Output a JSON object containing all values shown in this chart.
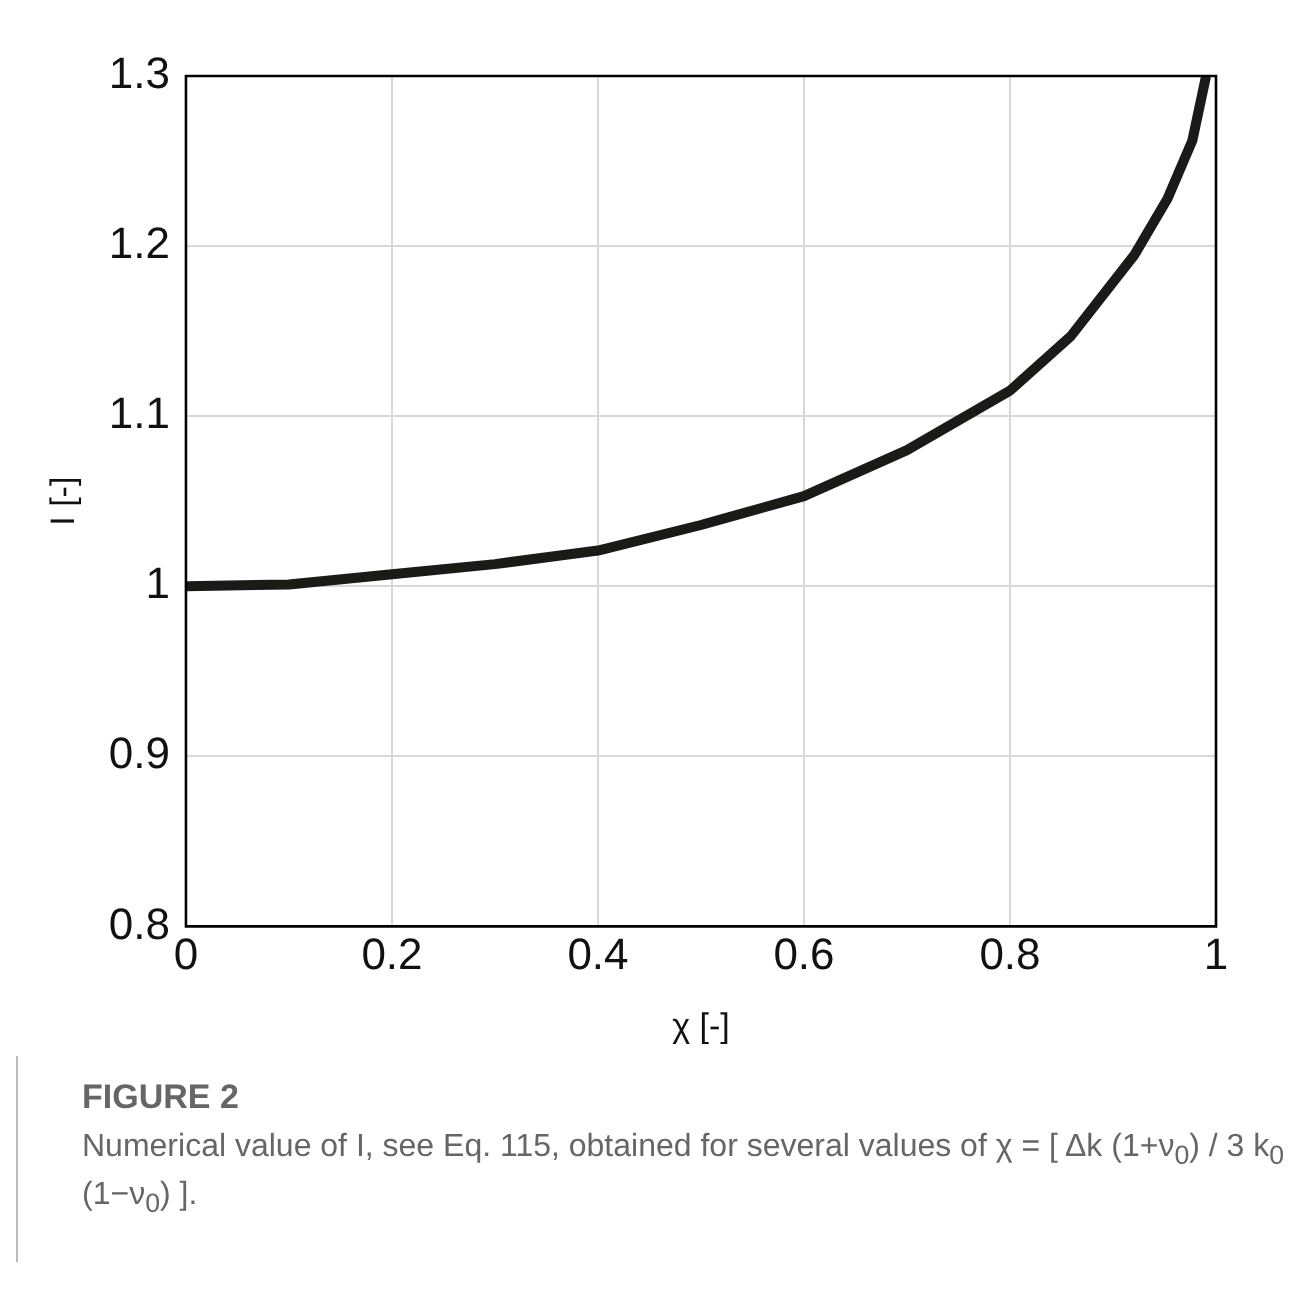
{
  "chart_data": {
    "type": "line",
    "xlabel": "χ [-]",
    "ylabel": "I [-]",
    "x": [
      0,
      0.1,
      0.2,
      0.3,
      0.4,
      0.5,
      0.6,
      0.7,
      0.8,
      0.859,
      0.921,
      0.953,
      0.977,
      0.99
    ],
    "series": [
      {
        "color": "#1a1a17",
        "values": [
          1.0,
          1.001,
          1.007,
          1.013,
          1.021,
          1.036,
          1.053,
          1.08,
          1.115,
          1.147,
          1.195,
          1.228,
          1.262,
          1.299
        ]
      }
    ],
    "xlim": [
      0,
      1
    ],
    "xticks": [
      0,
      0.2,
      0.4,
      0.6,
      0.8,
      1
    ],
    "ylim": [
      0.8,
      1.3
    ],
    "yticks": [
      0.8,
      0.9,
      1,
      1.1,
      1.2,
      1.3
    ],
    "grid": true,
    "legend": false,
    "marker": "none",
    "line_style": "solid",
    "annotations": [
      "FIGURE 2",
      "Numerical value of I, see Eq. 115, obtained for several values of χ = [ Δk (1+ν$_{0}$) / 3 k$_{0}$ (1−ν$_{0}$) ]."
    ]
  }
}
